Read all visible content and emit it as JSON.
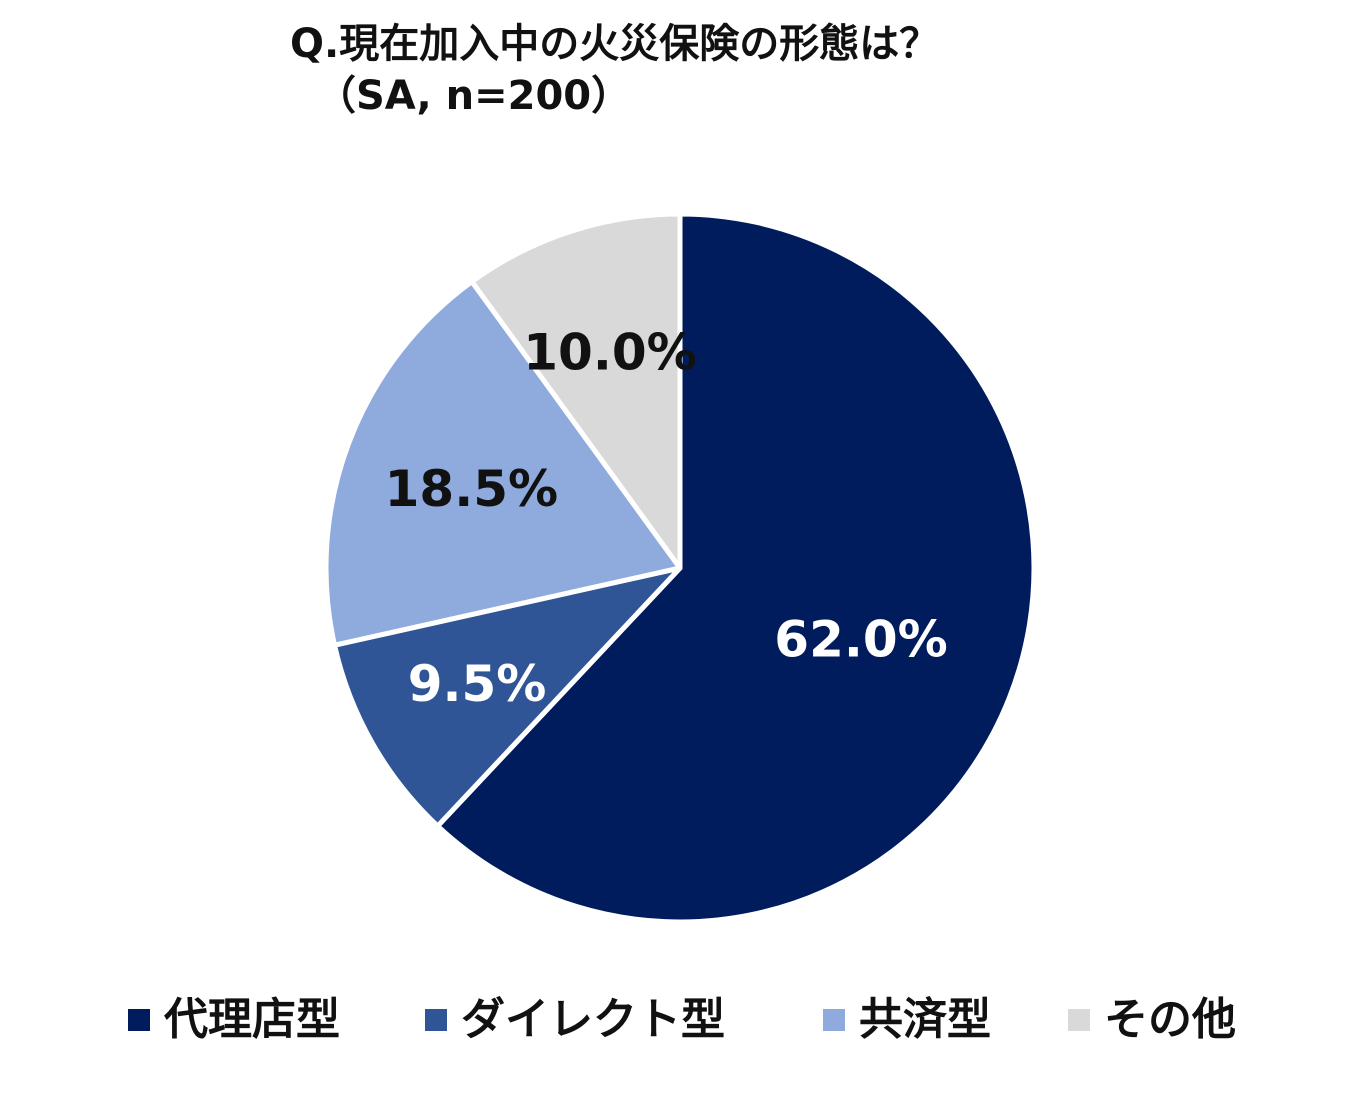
{
  "title": {
    "line1": "Q.現在加入中の火災保険の形態は？",
    "line2": "（SA, n=200）"
  },
  "chart_data": {
    "type": "pie",
    "slices": [
      {
        "label": "代理店型",
        "value": 62.0,
        "value_label": "62.0%",
        "color": "#001c5c",
        "label_color": "#ffffff"
      },
      {
        "label": "ダイレクト型",
        "value": 9.5,
        "value_label": "9.5%",
        "color": "#2f5597",
        "label_color": "#ffffff"
      },
      {
        "label": "共済型",
        "value": 18.5,
        "value_label": "18.5%",
        "color": "#8faadc",
        "label_color": "#111111"
      },
      {
        "label": "その他",
        "value": 10.0,
        "value_label": "10.0%",
        "color": "#d9d9d9",
        "label_color": "#111111"
      }
    ],
    "start_angle": "12 o'clock",
    "direction": "clockwise",
    "legend_position": "bottom"
  },
  "legend": {
    "items": [
      {
        "label": "代理店型",
        "color": "#001c5c"
      },
      {
        "label": "ダイレクト型",
        "color": "#2f5597"
      },
      {
        "label": "共済型",
        "color": "#8faadc"
      },
      {
        "label": "その他",
        "color": "#d9d9d9"
      }
    ]
  }
}
